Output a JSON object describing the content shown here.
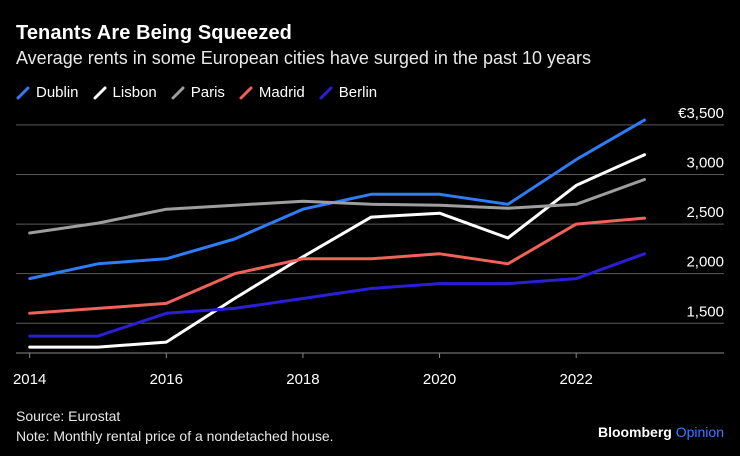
{
  "title": "Tenants Are Being Squeezed",
  "subtitle": "Average rents in some European cities have surged in the past 10 years",
  "source": "Source: Eurostat",
  "note": "Note: Monthly rental price of a nondetached house.",
  "brand": {
    "name": "Bloomberg",
    "suffix": "Opinion"
  },
  "chart_data": {
    "type": "line",
    "x": [
      2014,
      2015,
      2016,
      2017,
      2018,
      2019,
      2020,
      2021,
      2022,
      2023
    ],
    "x_ticks": [
      2014,
      2016,
      2018,
      2020,
      2022
    ],
    "x_tick_labels": [
      "2014",
      "2016",
      "2018",
      "2020",
      "2022"
    ],
    "y_ticks": [
      1500,
      2000,
      2500,
      3000,
      3500
    ],
    "y_tick_labels": [
      "1,500",
      "2,000",
      "2,500",
      "3,000",
      "€3,500"
    ],
    "ylim": [
      1200,
      3600
    ],
    "xlim": [
      2013.8,
      2023.3
    ],
    "grid": true,
    "legend_position": "top-left",
    "series": [
      {
        "name": "Dublin",
        "color": "#2e7cf6",
        "values": [
          1950,
          2100,
          2150,
          2350,
          2650,
          2800,
          2800,
          2700,
          3150,
          3550
        ]
      },
      {
        "name": "Lisbon",
        "color": "#ffffff",
        "values": [
          1260,
          1260,
          1310,
          1750,
          2170,
          2570,
          2610,
          2360,
          2890,
          3200
        ]
      },
      {
        "name": "Paris",
        "color": "#9e9e9e",
        "values": [
          2410,
          2510,
          2650,
          2690,
          2730,
          2700,
          2690,
          2660,
          2700,
          2950
        ]
      },
      {
        "name": "Madrid",
        "color": "#f0625a",
        "values": [
          1600,
          1650,
          1700,
          2000,
          2150,
          2150,
          2200,
          2100,
          2500,
          2560
        ]
      },
      {
        "name": "Berlin",
        "color": "#2a1fd6",
        "values": [
          1370,
          1370,
          1600,
          1650,
          1750,
          1850,
          1900,
          1900,
          1950,
          2200
        ]
      }
    ]
  }
}
